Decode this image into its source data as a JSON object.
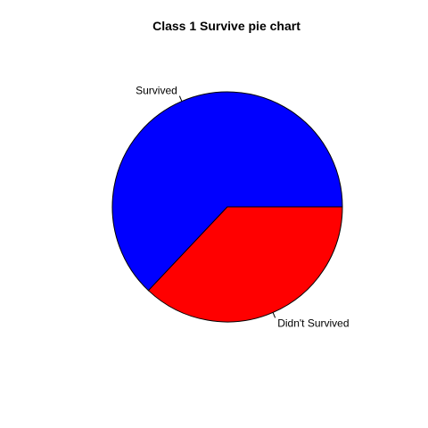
{
  "chart_data": {
    "type": "pie",
    "title": "Class 1 Survive pie chart",
    "slices": [
      {
        "label": "Survived",
        "value": 62.96,
        "color": "#0000FF"
      },
      {
        "label": "Didn't Survived",
        "value": 37.04,
        "color": "#FF0000"
      }
    ],
    "start_angle_deg": 0,
    "direction": "counterclockwise",
    "border_color": "#000000"
  }
}
